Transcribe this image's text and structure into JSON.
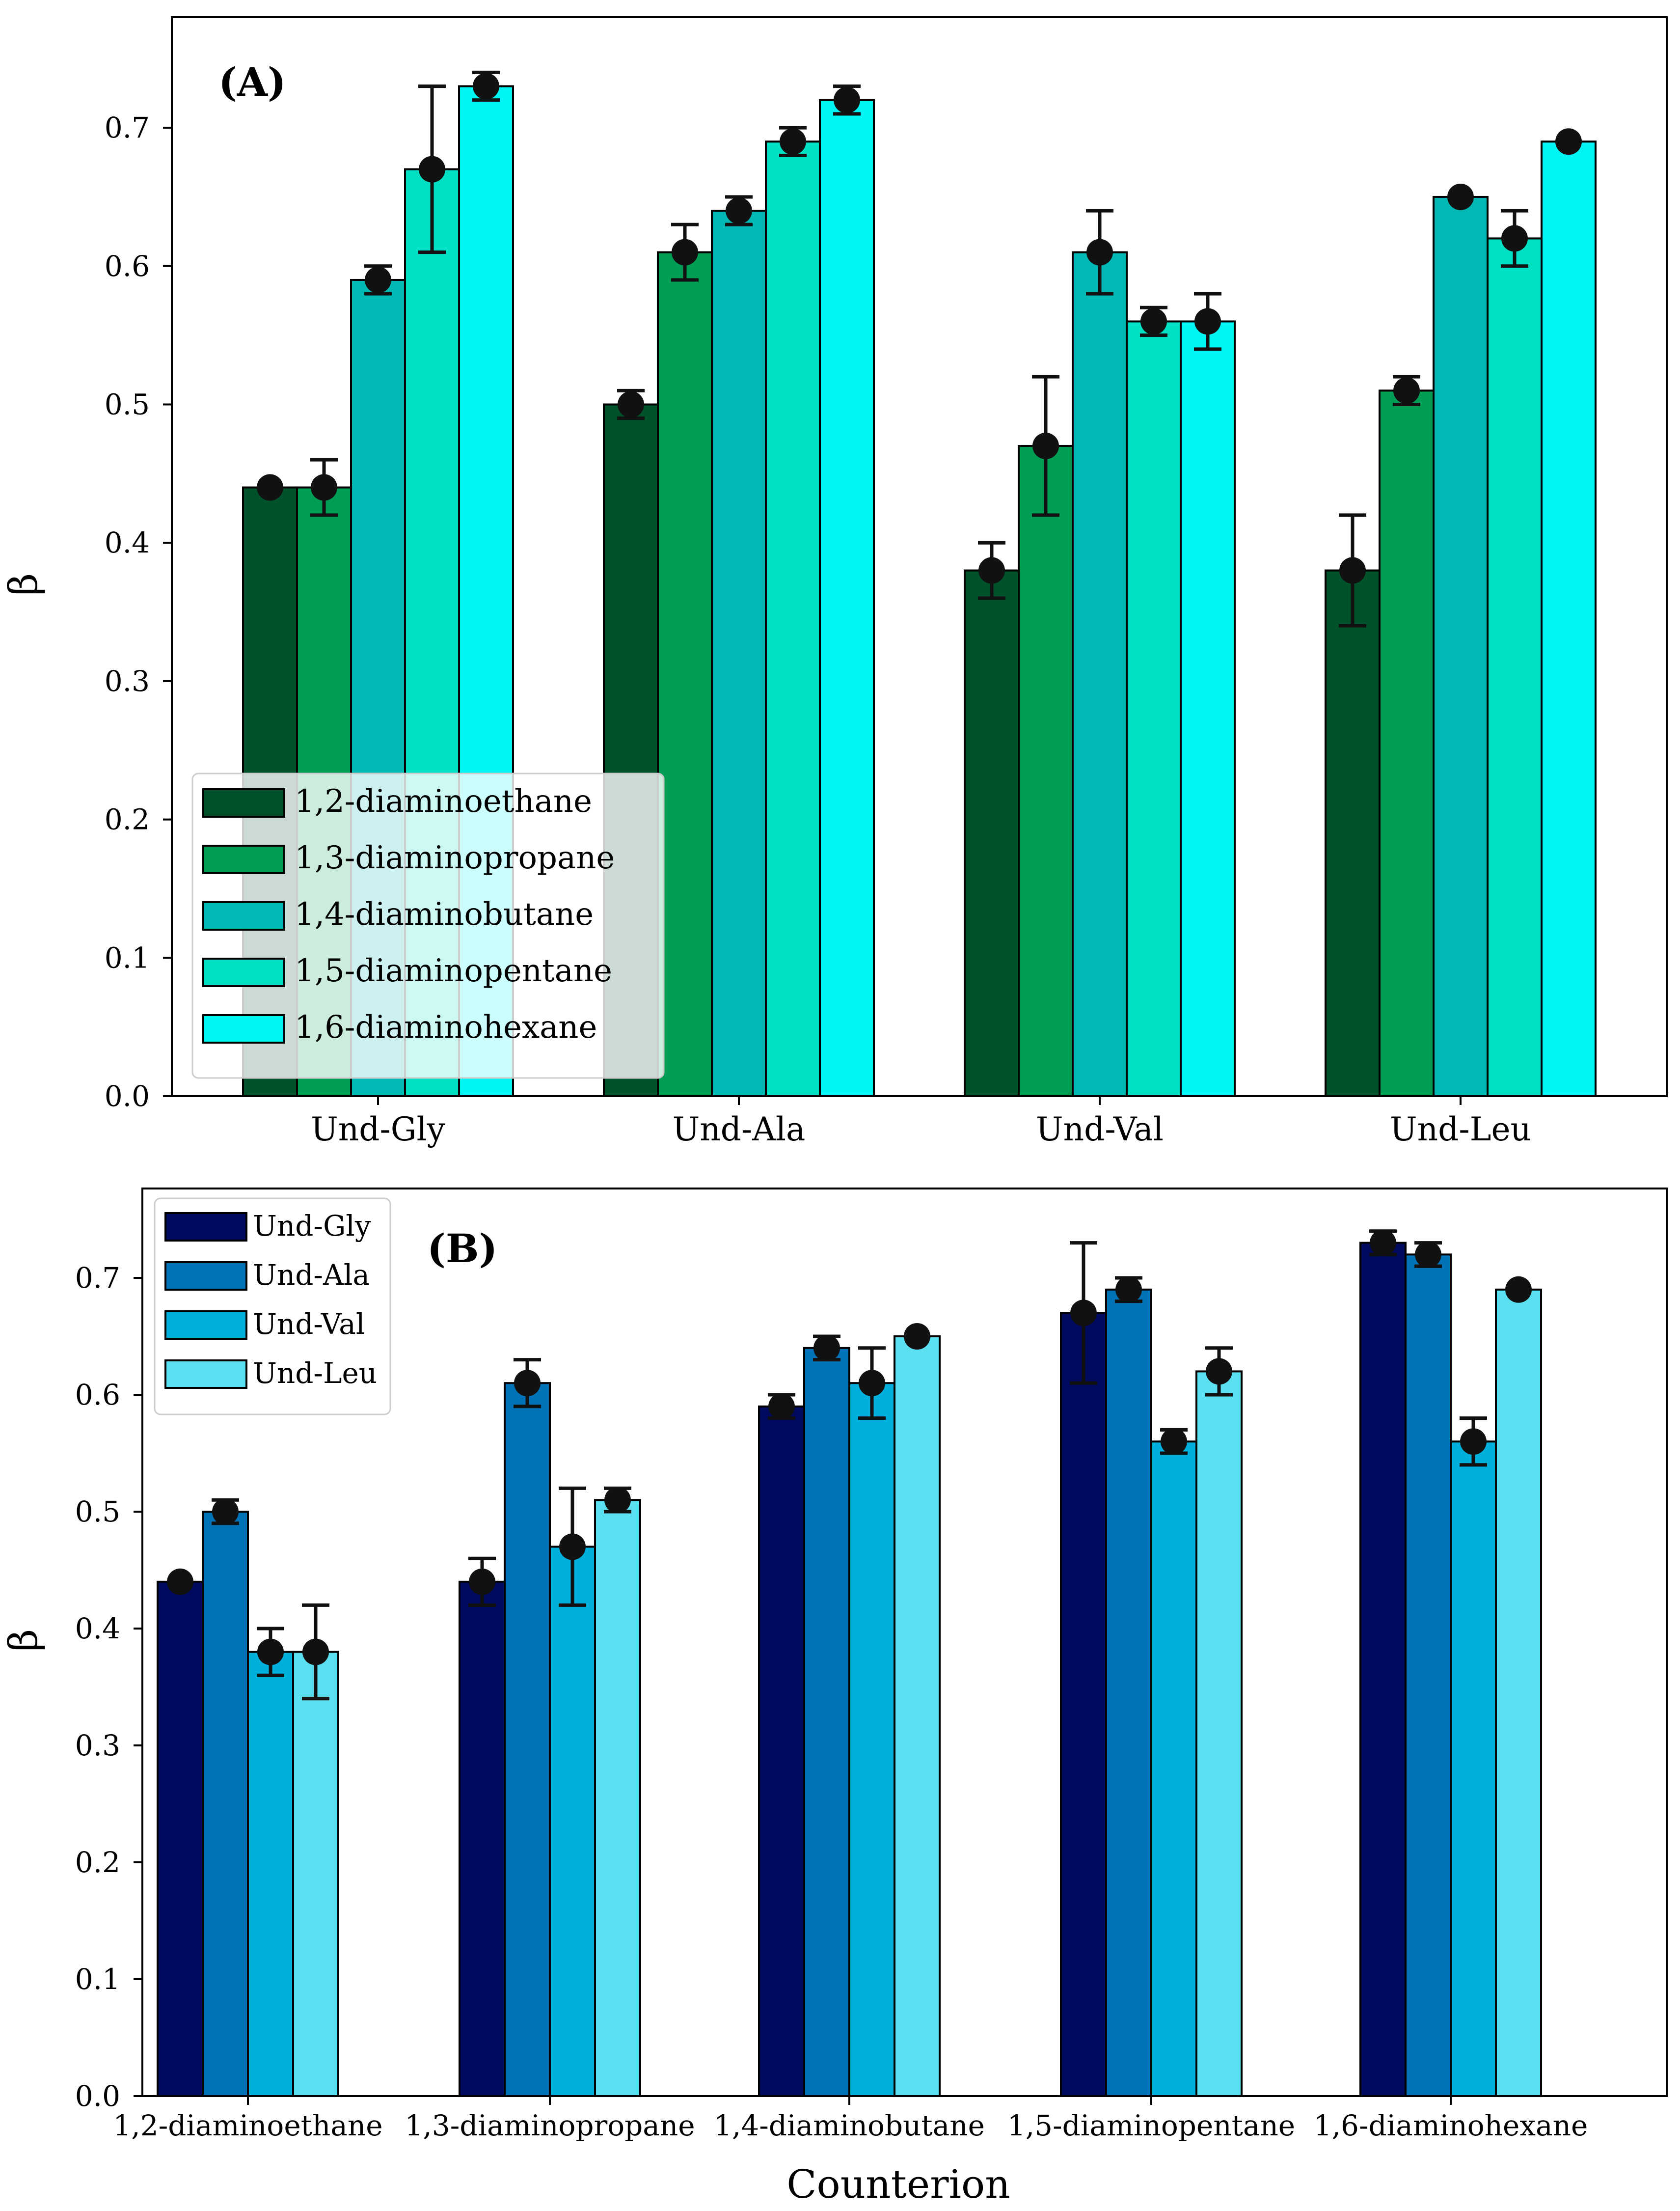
{
  "chart_data": [
    {
      "type": "bar",
      "panel_label": "(A)",
      "ylabel": "β",
      "xlabel": "",
      "ylim": [
        0,
        0.75
      ],
      "yticks": [
        "0.0",
        "0.1",
        "0.2",
        "0.3",
        "0.4",
        "0.5",
        "0.6",
        "0.7"
      ],
      "categories": [
        "Und-Gly",
        "Und-Ala",
        "Und-Val",
        "Und-Leu"
      ],
      "legend_position": "lower-left",
      "series": [
        {
          "name": "1,2-diaminoethane",
          "color": "#00522a",
          "values": [
            0.44,
            0.5,
            0.38,
            0.38
          ],
          "errors": [
            0.0,
            0.01,
            0.02,
            0.04
          ]
        },
        {
          "name": "1,3-diaminopropane",
          "color": "#009e55",
          "values": [
            0.44,
            0.61,
            0.47,
            0.51
          ],
          "errors": [
            0.02,
            0.02,
            0.05,
            0.01
          ]
        },
        {
          "name": "1,4-diaminobutane",
          "color": "#00b8b4",
          "values": [
            0.59,
            0.64,
            0.61,
            0.65
          ],
          "errors": [
            0.01,
            0.01,
            0.03,
            0.0
          ]
        },
        {
          "name": "1,5-diaminopentane",
          "color": "#00e0c4",
          "values": [
            0.67,
            0.69,
            0.56,
            0.62
          ],
          "errors": [
            0.06,
            0.01,
            0.01,
            0.02
          ]
        },
        {
          "name": "1,6-diaminohexane",
          "color": "#00f5f5",
          "values": [
            0.73,
            0.72,
            0.56,
            0.69
          ],
          "errors": [
            0.01,
            0.01,
            0.02,
            0.0
          ]
        }
      ]
    },
    {
      "type": "bar",
      "panel_label": "(B)",
      "ylabel": "β",
      "xlabel": "Counterion",
      "ylim": [
        0,
        0.75
      ],
      "yticks": [
        "0.0",
        "0.1",
        "0.2",
        "0.3",
        "0.4",
        "0.5",
        "0.6",
        "0.7"
      ],
      "categories": [
        "1,2-diaminoethane",
        "1,3-diaminopropane",
        "1,4-diaminobutane",
        "1,5-diaminopentane",
        "1,6-diaminohexane"
      ],
      "legend_position": "upper-left",
      "series": [
        {
          "name": "Und-Gly",
          "color": "#000a5e",
          "values": [
            0.44,
            0.44,
            0.59,
            0.67,
            0.73
          ],
          "errors": [
            0.0,
            0.02,
            0.01,
            0.06,
            0.01
          ]
        },
        {
          "name": "Und-Ala",
          "color": "#0073b8",
          "values": [
            0.5,
            0.61,
            0.64,
            0.69,
            0.72
          ],
          "errors": [
            0.01,
            0.02,
            0.01,
            0.01,
            0.01
          ]
        },
        {
          "name": "Und-Val",
          "color": "#00b0dc",
          "values": [
            0.38,
            0.47,
            0.61,
            0.56,
            0.56
          ],
          "errors": [
            0.02,
            0.05,
            0.03,
            0.01,
            0.02
          ]
        },
        {
          "name": "Und-Leu",
          "color": "#5ae0f0",
          "values": [
            0.38,
            0.51,
            0.65,
            0.62,
            0.69
          ],
          "errors": [
            0.04,
            0.01,
            0.0,
            0.02,
            0.0
          ]
        }
      ]
    }
  ]
}
